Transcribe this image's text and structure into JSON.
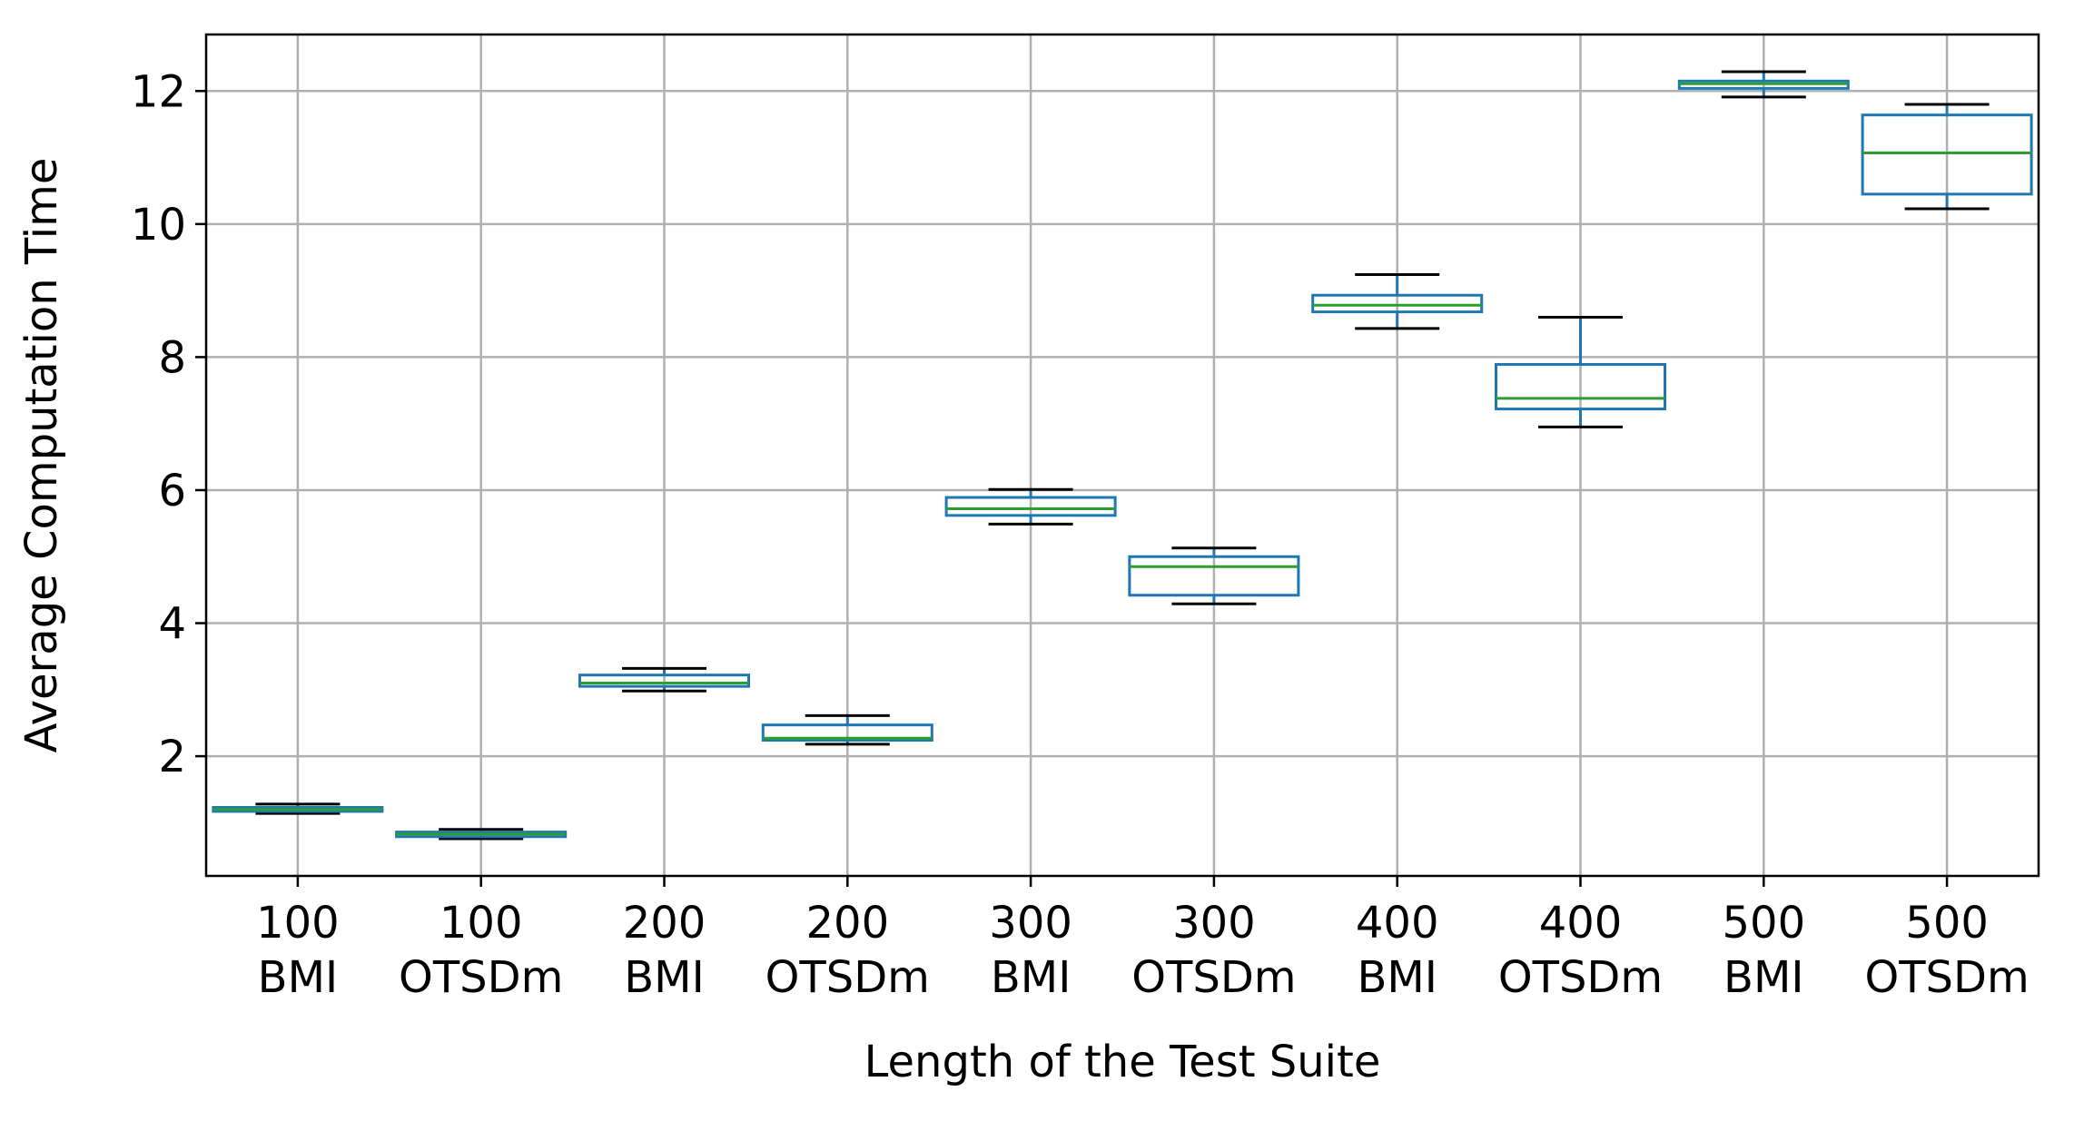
{
  "chart_data": {
    "type": "box",
    "title": "",
    "xlabel": "Length of the Test Suite",
    "ylabel": "Average Computation Time",
    "ylim": [
      0.2,
      12.85
    ],
    "yticks": [
      "2",
      "4",
      "6",
      "8",
      "10",
      "12"
    ],
    "ytick_values": [
      2,
      4,
      6,
      8,
      10,
      12
    ],
    "grid": true,
    "legend": "none",
    "colors": {
      "box": "#1f77b4",
      "median": "#2ca02c",
      "whisker": "#000000",
      "grid": "#b0b0b0"
    },
    "categories": [
      {
        "label_top": "100",
        "label_bottom": "BMI"
      },
      {
        "label_top": "100",
        "label_bottom": "OTSDm"
      },
      {
        "label_top": "200",
        "label_bottom": "BMI"
      },
      {
        "label_top": "200",
        "label_bottom": "OTSDm"
      },
      {
        "label_top": "300",
        "label_bottom": "BMI"
      },
      {
        "label_top": "300",
        "label_bottom": "OTSDm"
      },
      {
        "label_top": "400",
        "label_bottom": "BMI"
      },
      {
        "label_top": "400",
        "label_bottom": "OTSDm"
      },
      {
        "label_top": "500",
        "label_bottom": "BMI"
      },
      {
        "label_top": "500",
        "label_bottom": "OTSDm"
      }
    ],
    "boxes": [
      {
        "whislo": 1.14,
        "q1": 1.17,
        "med": 1.2,
        "q3": 1.23,
        "whishi": 1.28
      },
      {
        "whislo": 0.76,
        "q1": 0.79,
        "med": 0.83,
        "q3": 0.86,
        "whishi": 0.9
      },
      {
        "whislo": 2.98,
        "q1": 3.05,
        "med": 3.1,
        "q3": 3.22,
        "whishi": 3.32
      },
      {
        "whislo": 2.18,
        "q1": 2.24,
        "med": 2.27,
        "q3": 2.47,
        "whishi": 2.61
      },
      {
        "whislo": 5.49,
        "q1": 5.62,
        "med": 5.72,
        "q3": 5.89,
        "whishi": 6.01
      },
      {
        "whislo": 4.29,
        "q1": 4.42,
        "med": 4.85,
        "q3": 5.0,
        "whishi": 5.13
      },
      {
        "whislo": 8.43,
        "q1": 8.68,
        "med": 8.78,
        "q3": 8.93,
        "whishi": 9.24
      },
      {
        "whislo": 6.95,
        "q1": 7.22,
        "med": 7.38,
        "q3": 7.89,
        "whishi": 8.6
      },
      {
        "whislo": 11.91,
        "q1": 12.04,
        "med": 12.11,
        "q3": 12.15,
        "whishi": 12.29
      },
      {
        "whislo": 10.23,
        "q1": 10.45,
        "med": 11.07,
        "q3": 11.64,
        "whishi": 11.8
      }
    ]
  }
}
